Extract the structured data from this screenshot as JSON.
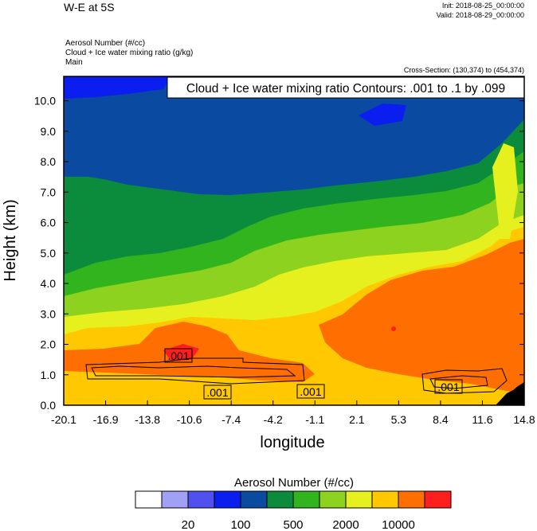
{
  "header": {
    "title": "W-E at 5S",
    "init": "Init: 2018-08-25_00:00:00",
    "valid": "Valid: 2018-08-29_00:00:00",
    "fields": [
      "Aerosol Number   (#/cc)",
      "Cloud + Ice water mixing ratio   (g/kg)",
      "Main"
    ],
    "cross_section": "Cross-Section: (130,374) to (454,374)"
  },
  "chart_data": {
    "type": "heatmap",
    "contour_label": "Cloud + Ice water mixing ratio Contours: .001 to .1 by .099",
    "contour_values": [
      ".001",
      ".001",
      ".001",
      ".001"
    ],
    "xlabel": "longitude",
    "ylabel": "Height (km)",
    "x_ticks": [
      "-20.1",
      "-16.9",
      "-13.8",
      "-10.6",
      "-7.4",
      "-4.2",
      "-1.1",
      "2.1",
      "5.3",
      "8.4",
      "11.6",
      "14.8"
    ],
    "y_ticks": [
      "0.0",
      "1.0",
      "2.0",
      "3.0",
      "4.0",
      "5.0",
      "6.0",
      "7.0",
      "8.0",
      "9.0",
      "10.0"
    ],
    "xlim": [
      -20.1,
      14.8
    ],
    "ylim": [
      0,
      10.8
    ],
    "colorbar": {
      "title": "Aerosol Number  (#/cc)",
      "colors": [
        "#ffffff",
        "#a0a0f5",
        "#5050f0",
        "#0a1ef0",
        "#0a4aa0",
        "#0a8c3c",
        "#32b41e",
        "#8cd21e",
        "#e6f01e",
        "#ffc800",
        "#ff6e00",
        "#ff1e1e"
      ],
      "tick_labels": [
        "20",
        "100",
        "500",
        "2000",
        "10000"
      ]
    }
  }
}
